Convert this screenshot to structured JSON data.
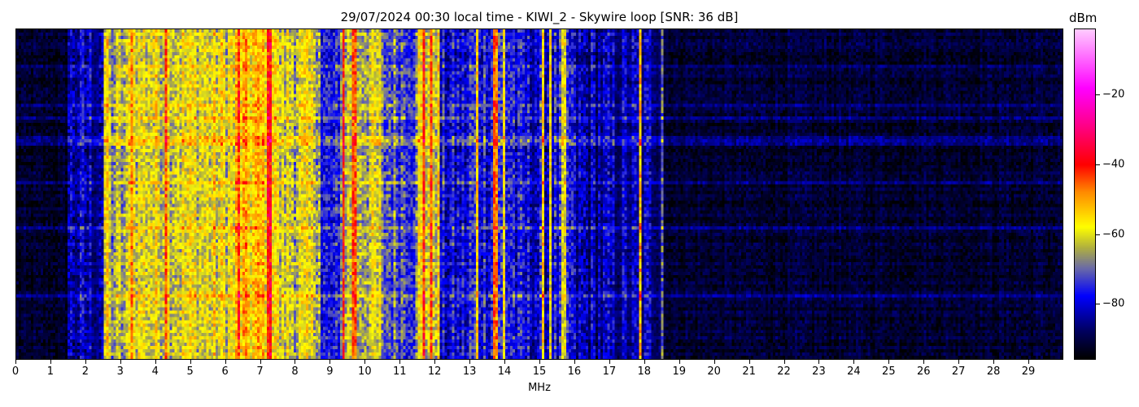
{
  "chart_data": {
    "type": "heatmap",
    "title": "29/07/2024 00:30 local time - KIWI_2 - Skywire loop [SNR: 36 dB]",
    "xlabel": "MHz",
    "xlim": [
      0,
      30
    ],
    "xticks": [
      0,
      1,
      2,
      3,
      4,
      5,
      6,
      7,
      8,
      9,
      10,
      11,
      12,
      13,
      14,
      15,
      16,
      17,
      18,
      19,
      20,
      21,
      22,
      23,
      24,
      25,
      26,
      27,
      28,
      29
    ],
    "colorbar": {
      "label": "dBm",
      "range": [
        -96,
        -1
      ],
      "ticks": [
        -20,
        -40,
        -60,
        -80
      ],
      "colormap": [
        [
          -96,
          "#000000"
        ],
        [
          -88,
          "#000060"
        ],
        [
          -78,
          "#0000ff"
        ],
        [
          -70,
          "#6a6aa8"
        ],
        [
          -64,
          "#b0b040"
        ],
        [
          -58,
          "#ffff00"
        ],
        [
          -48,
          "#ff8c00"
        ],
        [
          -40,
          "#ff0000"
        ],
        [
          -28,
          "#ff0090"
        ],
        [
          -18,
          "#ff00ff"
        ],
        [
          -1,
          "#ffccff"
        ]
      ]
    },
    "band_levels_dbm": [
      [
        0,
        1.5,
        -93
      ],
      [
        1.5,
        2.5,
        -83
      ],
      [
        2.5,
        3.2,
        -66
      ],
      [
        3.2,
        6.3,
        -60
      ],
      [
        6.3,
        7.5,
        -55
      ],
      [
        7.5,
        8.7,
        -62
      ],
      [
        8.7,
        9.3,
        -79
      ],
      [
        9.3,
        10.5,
        -63
      ],
      [
        10.5,
        11.5,
        -71
      ],
      [
        11.5,
        12.1,
        -60
      ],
      [
        12.1,
        13,
        -80
      ],
      [
        13,
        14.3,
        -76
      ],
      [
        14.3,
        15,
        -80
      ],
      [
        15,
        16,
        -79
      ],
      [
        16,
        18.5,
        -84
      ],
      [
        18.5,
        30,
        -92
      ]
    ],
    "strong_lines_mhz": [
      [
        2.6,
        -55
      ],
      [
        3.3,
        -48
      ],
      [
        4.3,
        -45
      ],
      [
        6.4,
        -42
      ],
      [
        7.2,
        -40
      ],
      [
        7.3,
        -38
      ],
      [
        9.4,
        -42
      ],
      [
        9.7,
        -45
      ],
      [
        11.7,
        -42
      ],
      [
        11.9,
        -44
      ],
      [
        12.1,
        -55
      ],
      [
        13.2,
        -55
      ],
      [
        13.7,
        -45
      ],
      [
        13.8,
        -48
      ],
      [
        14.0,
        -58
      ],
      [
        15.1,
        -55
      ],
      [
        15.3,
        -58
      ],
      [
        15.7,
        -60
      ],
      [
        17.9,
        -52
      ],
      [
        18.5,
        -70
      ]
    ]
  }
}
